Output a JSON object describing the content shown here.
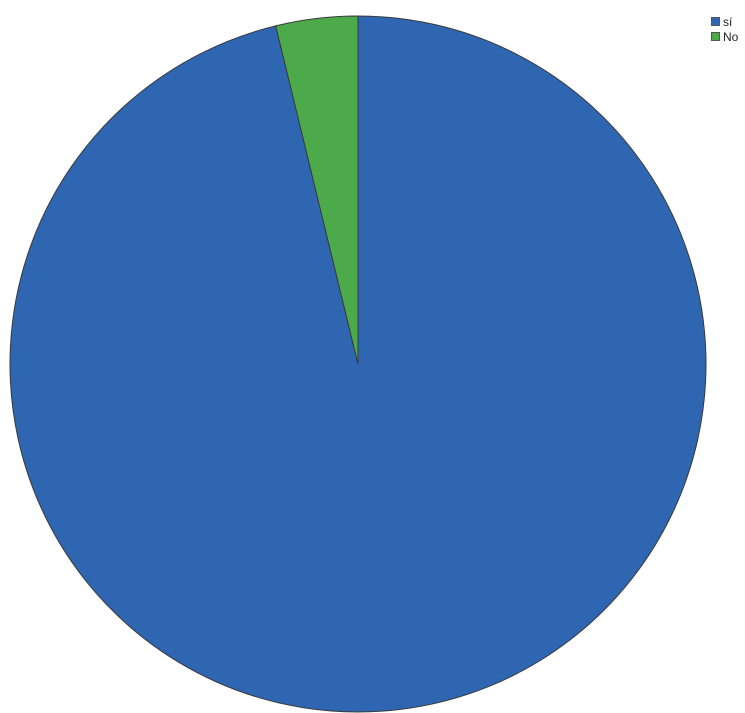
{
  "chart_data": {
    "type": "pie",
    "title": "",
    "slices": [
      {
        "label": "sí",
        "value": 96.2,
        "color": "#2f66b1"
      },
      {
        "label": "No",
        "value": 3.8,
        "color": "#4daa4a"
      }
    ],
    "legend_position": "top-right",
    "grid": false
  }
}
